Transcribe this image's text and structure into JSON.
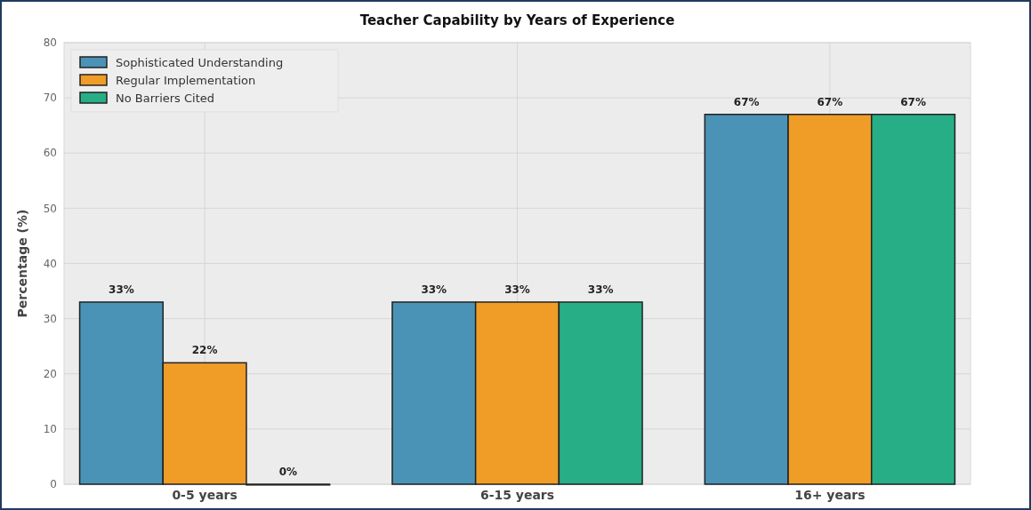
{
  "chart_data": {
    "type": "bar",
    "title": "Teacher Capability by Years of Experience",
    "ylabel": "Percentage (%)",
    "categories": [
      "0-5 years",
      "6-15 years",
      "16+ years"
    ],
    "series": [
      {
        "name": "Sophisticated Understanding",
        "color": "#4a93b6",
        "values": [
          33,
          33,
          67
        ],
        "value_labels": [
          "33%",
          "33%",
          "67%"
        ]
      },
      {
        "name": "Regular Implementation",
        "color": "#f09d28",
        "values": [
          22,
          33,
          67
        ],
        "value_labels": [
          "22%",
          "33%",
          "67%"
        ]
      },
      {
        "name": "No Barriers Cited",
        "color": "#27ae87",
        "values": [
          0,
          33,
          67
        ],
        "value_labels": [
          "0%",
          "33%",
          "67%"
        ]
      }
    ],
    "ylim": [
      0,
      80
    ],
    "yticks": [
      0,
      10,
      20,
      30,
      40,
      50,
      60,
      70,
      80
    ],
    "grid": true,
    "legend": "top left"
  }
}
